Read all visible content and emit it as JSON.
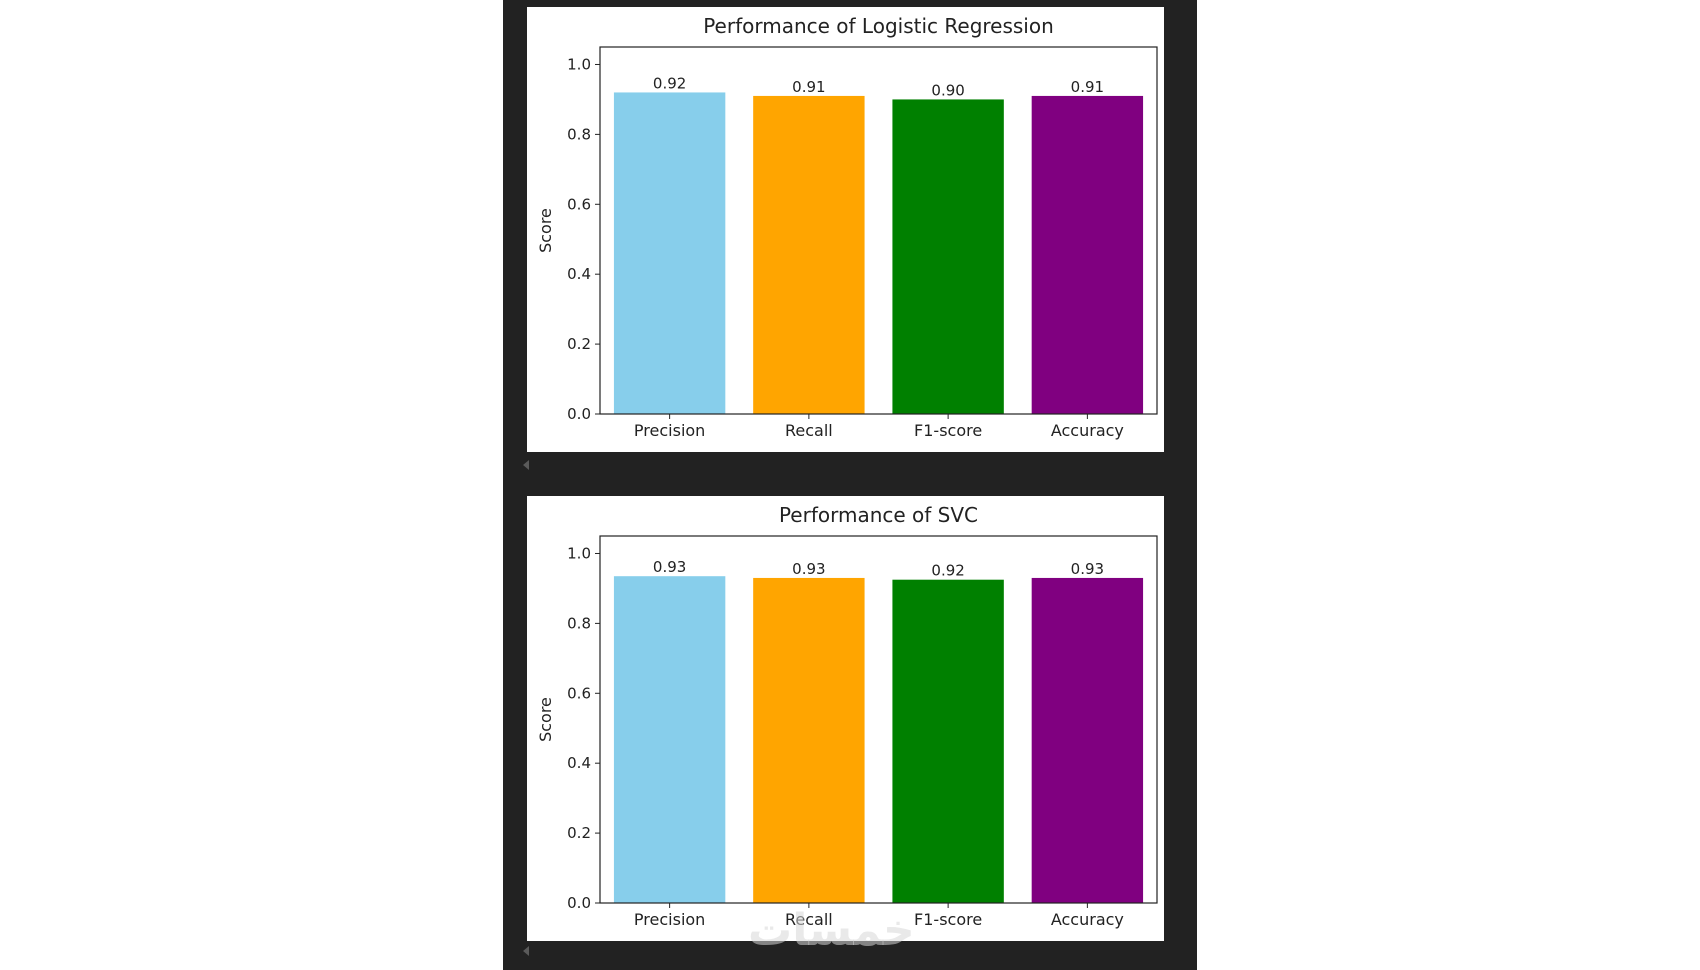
{
  "watermark": "خمسات",
  "chart_data": [
    {
      "type": "bar",
      "title": "Performance of Logistic Regression",
      "xlabel": "",
      "ylabel": "Score",
      "categories": [
        "Precision",
        "Recall",
        "F1-score",
        "Accuracy"
      ],
      "values": [
        0.92,
        0.91,
        0.9,
        0.91
      ],
      "value_labels": [
        "0.92",
        "0.91",
        "0.90",
        "0.91"
      ],
      "colors": [
        "#87ceeb",
        "#ffa500",
        "#008000",
        "#800080"
      ],
      "ylim": [
        0,
        1.05
      ],
      "yticks": [
        "0.0",
        "0.2",
        "0.4",
        "0.6",
        "0.8",
        "1.0"
      ],
      "grid": false
    },
    {
      "type": "bar",
      "title": "Performance of SVC",
      "xlabel": "",
      "ylabel": "Score",
      "categories": [
        "Precision",
        "Recall",
        "F1-score",
        "Accuracy"
      ],
      "values": [
        0.935,
        0.93,
        0.925,
        0.93
      ],
      "value_labels": [
        "0.93",
        "0.93",
        "0.92",
        "0.93"
      ],
      "colors": [
        "#87ceeb",
        "#ffa500",
        "#008000",
        "#800080"
      ],
      "ylim": [
        0,
        1.05
      ],
      "yticks": [
        "0.0",
        "0.2",
        "0.4",
        "0.6",
        "0.8",
        "1.0"
      ],
      "grid": false
    }
  ]
}
